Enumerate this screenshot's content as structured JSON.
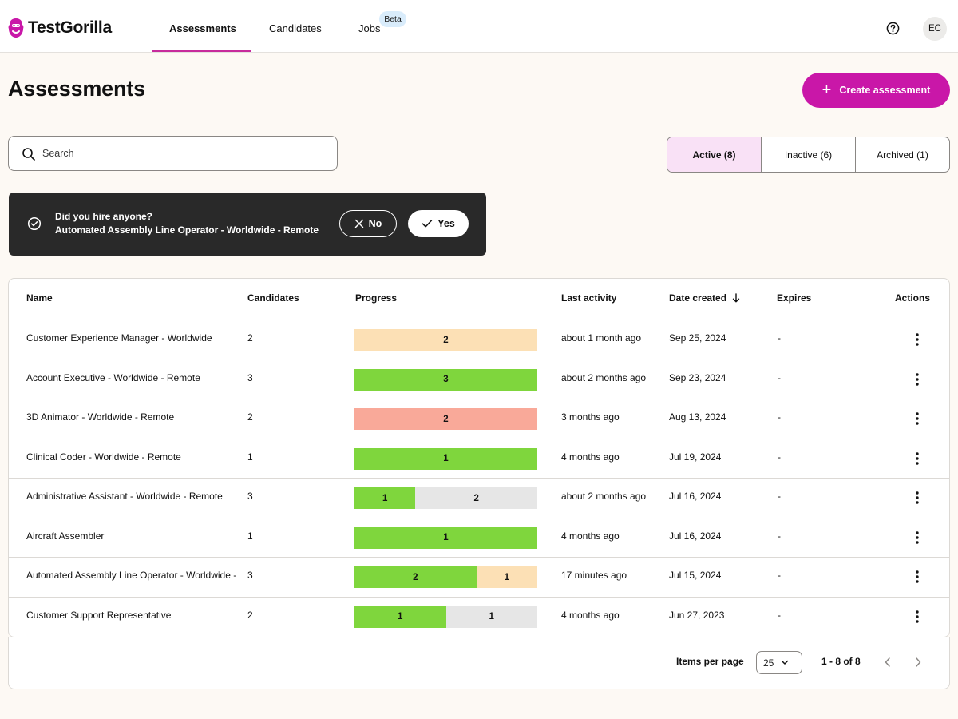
{
  "header": {
    "logo_text": "TestGorilla",
    "nav": [
      {
        "label": "Assessments",
        "active": true
      },
      {
        "label": "Candidates"
      },
      {
        "label": "Jobs",
        "badge": "Beta"
      }
    ],
    "help_icon": "help-circle-icon",
    "avatar_initials": "EC"
  },
  "page": {
    "title": "Assessments",
    "create_button_label": "Create assessment",
    "search_placeholder": "Search"
  },
  "status_tabs": [
    {
      "label": "Active (8)",
      "active": true
    },
    {
      "label": "Inactive (6)"
    },
    {
      "label": "Archived (1)"
    }
  ],
  "banner": {
    "question": "Did you hire anyone?",
    "job": "Automated Assembly Line Operator - Worldwide - Remote",
    "no_label": "No",
    "yes_label": "Yes"
  },
  "colors": {
    "accent": "#c917a8",
    "progress_green": "#7fd63d",
    "progress_orange": "#fce0b5",
    "progress_red": "#f9a999",
    "progress_grey": "#e6e6e6"
  },
  "table": {
    "columns": [
      "Name",
      "Candidates",
      "Progress",
      "Last activity",
      "Date created",
      "Expires",
      "Actions"
    ],
    "rows": [
      {
        "name": "Customer Experience Manager - Worldwide",
        "candidates": "2",
        "progress": [
          {
            "value": "2",
            "color": "orange",
            "fraction": 1.0
          }
        ],
        "last_activity": "about 1 month ago",
        "date_created": "Sep 25, 2024",
        "expires": "-"
      },
      {
        "name": "Account Executive - Worldwide - Remote",
        "candidates": "3",
        "progress": [
          {
            "value": "3",
            "color": "green",
            "fraction": 1.0
          }
        ],
        "last_activity": "about 2 months ago",
        "date_created": "Sep 23, 2024",
        "expires": "-"
      },
      {
        "name": "3D Animator - Worldwide - Remote",
        "candidates": "2",
        "progress": [
          {
            "value": "2",
            "color": "red",
            "fraction": 1.0
          }
        ],
        "last_activity": "3 months ago",
        "date_created": "Aug 13, 2024",
        "expires": "-"
      },
      {
        "name": "Clinical Coder - Worldwide - Remote",
        "candidates": "1",
        "progress": [
          {
            "value": "1",
            "color": "green",
            "fraction": 1.0
          }
        ],
        "last_activity": "4 months ago",
        "date_created": "Jul 19, 2024",
        "expires": "-"
      },
      {
        "name": "Administrative Assistant - Worldwide - Remote",
        "candidates": "3",
        "progress": [
          {
            "value": "1",
            "color": "green",
            "fraction": 0.3333
          },
          {
            "value": "2",
            "color": "grey",
            "fraction": 0.6667
          }
        ],
        "last_activity": "about 2 months ago",
        "date_created": "Jul 16, 2024",
        "expires": "-"
      },
      {
        "name": "Aircraft Assembler",
        "candidates": "1",
        "progress": [
          {
            "value": "1",
            "color": "green",
            "fraction": 1.0
          }
        ],
        "last_activity": "4 months ago",
        "date_created": "Jul 16, 2024",
        "expires": "-"
      },
      {
        "name": "Automated Assembly Line Operator - Worldwide - Remote",
        "candidates": "3",
        "progress": [
          {
            "value": "2",
            "color": "green",
            "fraction": 0.6667
          },
          {
            "value": "1",
            "color": "orange",
            "fraction": 0.3333
          }
        ],
        "last_activity": "17 minutes ago",
        "date_created": "Jul 15, 2024",
        "expires": "-"
      },
      {
        "name": "Customer Support Representative",
        "candidates": "2",
        "progress": [
          {
            "value": "1",
            "color": "green",
            "fraction": 0.5
          },
          {
            "value": "1",
            "color": "grey",
            "fraction": 0.5
          }
        ],
        "last_activity": "4 months ago",
        "date_created": "Jun 27, 2023",
        "expires": "-"
      }
    ]
  },
  "pagination": {
    "items_per_page_label": "Items per page",
    "items_per_page": "25",
    "range": "1 - 8 of 8"
  }
}
